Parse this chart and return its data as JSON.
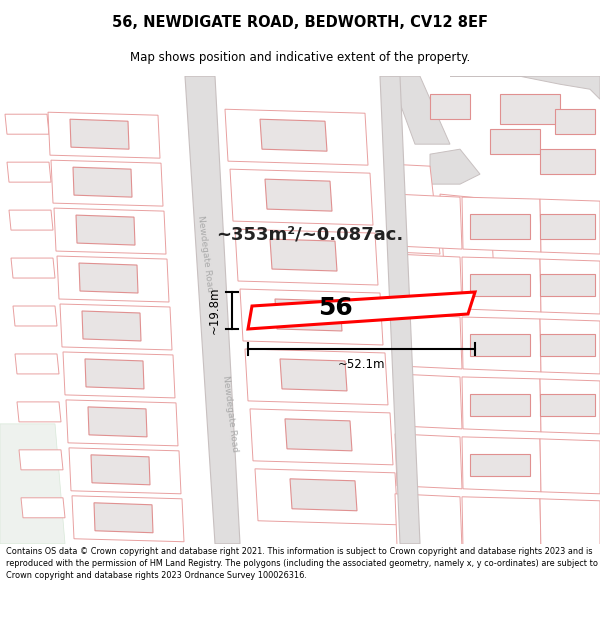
{
  "title": "56, NEWDIGATE ROAD, BEDWORTH, CV12 8EF",
  "subtitle": "Map shows position and indicative extent of the property.",
  "area_label": "~353m²/~0.087ac.",
  "house_number": "56",
  "dim_width": "~52.1m",
  "dim_height": "~19.8m",
  "road_label_1": "Newdegate Road",
  "road_label_2": "Newdegate Road",
  "footer_text": "Contains OS data © Crown copyright and database right 2021. This information is subject to Crown copyright and database rights 2023 and is reproduced with the permission of HM Land Registry. The polygons (including the associated geometry, namely x, y co-ordinates) are subject to Crown copyright and database rights 2023 Ordnance Survey 100026316.",
  "bg_color": "#ffffff",
  "map_bg": "#ffffff",
  "road_fill": "#e0dede",
  "road_stroke": "#c8c0c0",
  "building_fill": "#e8e4e4",
  "building_stroke": "#e09090",
  "plot_stroke": "#e8a0a0",
  "highlight_fill": "#ffffff",
  "highlight_stroke": "#ff0000",
  "title_color": "#000000",
  "footer_color": "#000000",
  "green_area": "#e8f0e8"
}
